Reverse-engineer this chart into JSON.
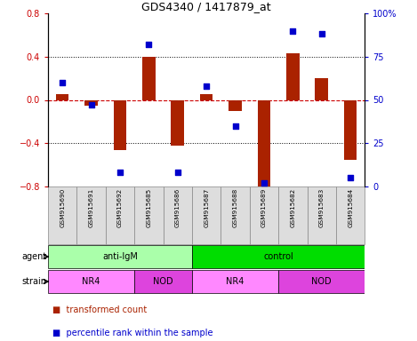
{
  "title": "GDS4340 / 1417879_at",
  "samples": [
    "GSM915690",
    "GSM915691",
    "GSM915692",
    "GSM915685",
    "GSM915686",
    "GSM915687",
    "GSM915688",
    "GSM915689",
    "GSM915682",
    "GSM915683",
    "GSM915684"
  ],
  "transformed_count": [
    0.05,
    -0.05,
    -0.46,
    0.4,
    -0.42,
    0.05,
    -0.1,
    -0.8,
    0.43,
    0.2,
    -0.55
  ],
  "percentile_rank": [
    60,
    47,
    8,
    82,
    8,
    58,
    35,
    2,
    90,
    88,
    5
  ],
  "ylim_left": [
    -0.8,
    0.8
  ],
  "ylim_right": [
    0,
    100
  ],
  "yticks_left": [
    -0.8,
    -0.4,
    0.0,
    0.4,
    0.8
  ],
  "yticks_right": [
    0,
    25,
    50,
    75,
    100
  ],
  "ytick_labels_right": [
    "0",
    "25",
    "50",
    "75",
    "100%"
  ],
  "bar_color": "#AA2200",
  "dot_color": "#0000CC",
  "zero_line_color": "#CC0000",
  "hgrid_color": "#000000",
  "agent_groups": [
    {
      "label": "anti-IgM",
      "start": 0,
      "end": 5,
      "color": "#AAFFAA"
    },
    {
      "label": "control",
      "start": 5,
      "end": 11,
      "color": "#00DD00"
    }
  ],
  "strain_groups": [
    {
      "label": "NR4",
      "start": 0,
      "end": 3,
      "color": "#FF88FF"
    },
    {
      "label": "NOD",
      "start": 3,
      "end": 5,
      "color": "#DD44DD"
    },
    {
      "label": "NR4",
      "start": 5,
      "end": 8,
      "color": "#FF88FF"
    },
    {
      "label": "NOD",
      "start": 8,
      "end": 11,
      "color": "#DD44DD"
    }
  ],
  "legend_items": [
    {
      "label": "transformed count",
      "color": "#AA2200"
    },
    {
      "label": "percentile rank within the sample",
      "color": "#0000CC"
    }
  ],
  "agent_label": "agent",
  "strain_label": "strain",
  "tick_color_left": "#CC0000",
  "tick_color_right": "#0000CC",
  "bar_width": 0.45,
  "dot_size": 18
}
